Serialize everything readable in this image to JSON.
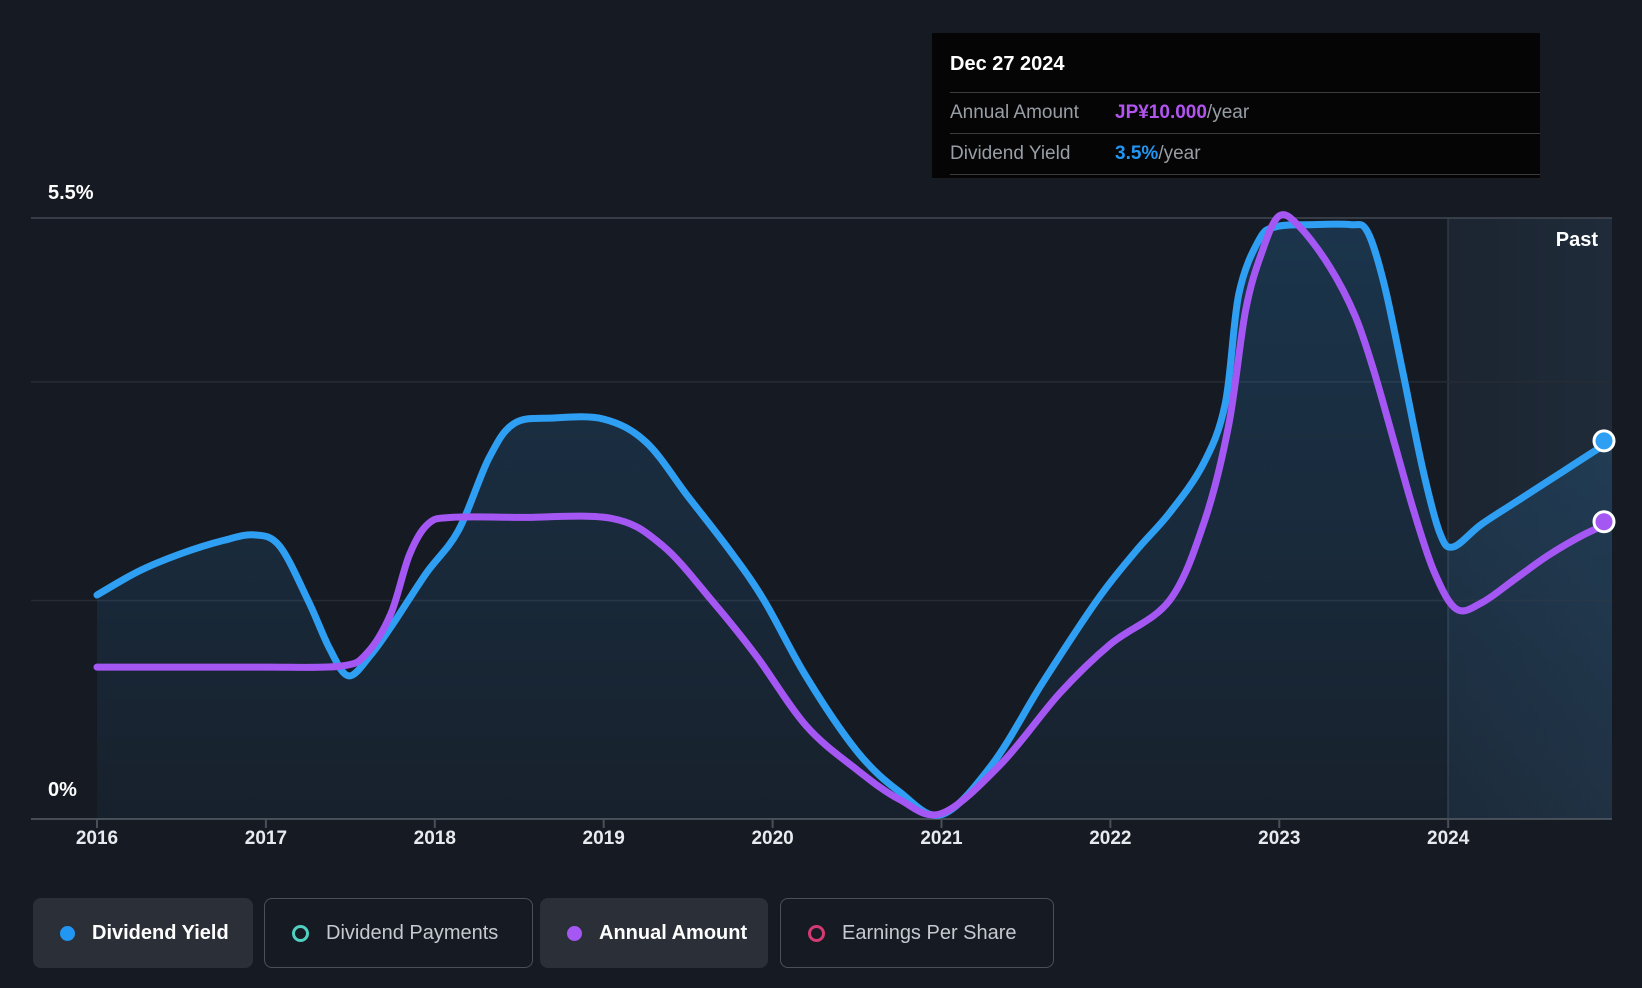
{
  "tooltip": {
    "date": "Dec 27 2024",
    "rows": [
      {
        "label": "Annual Amount",
        "value": "JP¥10.000",
        "suffix": "/year",
        "color": "#b254f0"
      },
      {
        "label": "Dividend Yield",
        "value": "3.5%",
        "suffix": "/year",
        "color": "#2196f3"
      }
    ]
  },
  "y_axis": {
    "top_label": "5.5%",
    "bottom_label": "0%"
  },
  "past_label": "Past",
  "legend": {
    "items": [
      {
        "label": "Dividend Yield",
        "state": "active",
        "marker": "filled",
        "color": "#2196f3"
      },
      {
        "label": "Dividend Payments",
        "state": "inactive",
        "marker": "outline",
        "color": "#4fd0c0"
      },
      {
        "label": "Annual Amount",
        "state": "active",
        "marker": "filled",
        "color": "#a557f3"
      },
      {
        "label": "Earnings Per Share",
        "state": "inactive",
        "marker": "outline",
        "color": "#d23a74"
      }
    ]
  },
  "chart_data": {
    "type": "line",
    "x_ticks": [
      2016,
      2017,
      2018,
      2019,
      2020,
      2021,
      2022,
      2023,
      2024
    ],
    "x_range": [
      2016,
      2024.97
    ],
    "ylim": [
      0,
      5.5
    ],
    "y_gridlines": [
      5.5,
      4,
      2,
      0
    ],
    "y_unit": "%",
    "past_region_start": 2024.0,
    "series": [
      {
        "name": "Dividend Yield",
        "color": "#2e9ff2",
        "area_fill": true,
        "end_marker": true,
        "points": [
          [
            2016.0,
            2.05
          ],
          [
            2016.25,
            2.27
          ],
          [
            2016.5,
            2.43
          ],
          [
            2016.75,
            2.55
          ],
          [
            2016.93,
            2.6
          ],
          [
            2017.08,
            2.5
          ],
          [
            2017.25,
            2.0
          ],
          [
            2017.38,
            1.55
          ],
          [
            2017.49,
            1.31
          ],
          [
            2017.62,
            1.5
          ],
          [
            2017.75,
            1.78
          ],
          [
            2017.95,
            2.25
          ],
          [
            2018.14,
            2.64
          ],
          [
            2018.32,
            3.3
          ],
          [
            2018.47,
            3.62
          ],
          [
            2018.7,
            3.67
          ],
          [
            2019.0,
            3.66
          ],
          [
            2019.25,
            3.45
          ],
          [
            2019.5,
            2.95
          ],
          [
            2019.75,
            2.45
          ],
          [
            2019.95,
            2.0
          ],
          [
            2020.2,
            1.3
          ],
          [
            2020.5,
            0.62
          ],
          [
            2020.75,
            0.25
          ],
          [
            2021.0,
            0.04
          ],
          [
            2021.3,
            0.5
          ],
          [
            2021.6,
            1.25
          ],
          [
            2021.92,
            2.0
          ],
          [
            2022.15,
            2.45
          ],
          [
            2022.35,
            2.8
          ],
          [
            2022.55,
            3.25
          ],
          [
            2022.68,
            3.8
          ],
          [
            2022.76,
            4.8
          ],
          [
            2022.88,
            5.3
          ],
          [
            2022.98,
            5.42
          ],
          [
            2023.2,
            5.44
          ],
          [
            2023.42,
            5.44
          ],
          [
            2023.52,
            5.38
          ],
          [
            2023.62,
            4.9
          ],
          [
            2023.73,
            4.1
          ],
          [
            2023.85,
            3.2
          ],
          [
            2023.95,
            2.62
          ],
          [
            2024.03,
            2.49
          ],
          [
            2024.2,
            2.7
          ],
          [
            2024.45,
            2.95
          ],
          [
            2024.7,
            3.2
          ],
          [
            2024.9,
            3.4
          ],
          [
            2024.97,
            3.46
          ]
        ]
      },
      {
        "name": "Annual Amount",
        "color": "#a557f3",
        "area_fill": false,
        "end_marker": true,
        "points": [
          [
            2016.0,
            1.39
          ],
          [
            2016.5,
            1.39
          ],
          [
            2017.0,
            1.39
          ],
          [
            2017.45,
            1.4
          ],
          [
            2017.6,
            1.52
          ],
          [
            2017.74,
            1.88
          ],
          [
            2017.85,
            2.42
          ],
          [
            2017.96,
            2.7
          ],
          [
            2018.1,
            2.76
          ],
          [
            2018.5,
            2.76
          ],
          [
            2019.05,
            2.75
          ],
          [
            2019.35,
            2.5
          ],
          [
            2019.64,
            2.0
          ],
          [
            2019.9,
            1.5
          ],
          [
            2020.2,
            0.85
          ],
          [
            2020.5,
            0.45
          ],
          [
            2020.75,
            0.18
          ],
          [
            2021.0,
            0.05
          ],
          [
            2021.35,
            0.5
          ],
          [
            2021.7,
            1.15
          ],
          [
            2022.0,
            1.6
          ],
          [
            2022.35,
            2.0
          ],
          [
            2022.56,
            2.74
          ],
          [
            2022.7,
            3.6
          ],
          [
            2022.8,
            4.65
          ],
          [
            2022.9,
            5.2
          ],
          [
            2023.0,
            5.52
          ],
          [
            2023.12,
            5.42
          ],
          [
            2023.3,
            5.05
          ],
          [
            2023.45,
            4.6
          ],
          [
            2023.56,
            4.1
          ],
          [
            2023.68,
            3.45
          ],
          [
            2023.8,
            2.8
          ],
          [
            2023.92,
            2.25
          ],
          [
            2024.05,
            1.92
          ],
          [
            2024.2,
            1.98
          ],
          [
            2024.4,
            2.2
          ],
          [
            2024.6,
            2.42
          ],
          [
            2024.8,
            2.6
          ],
          [
            2024.97,
            2.72
          ]
        ]
      }
    ]
  }
}
